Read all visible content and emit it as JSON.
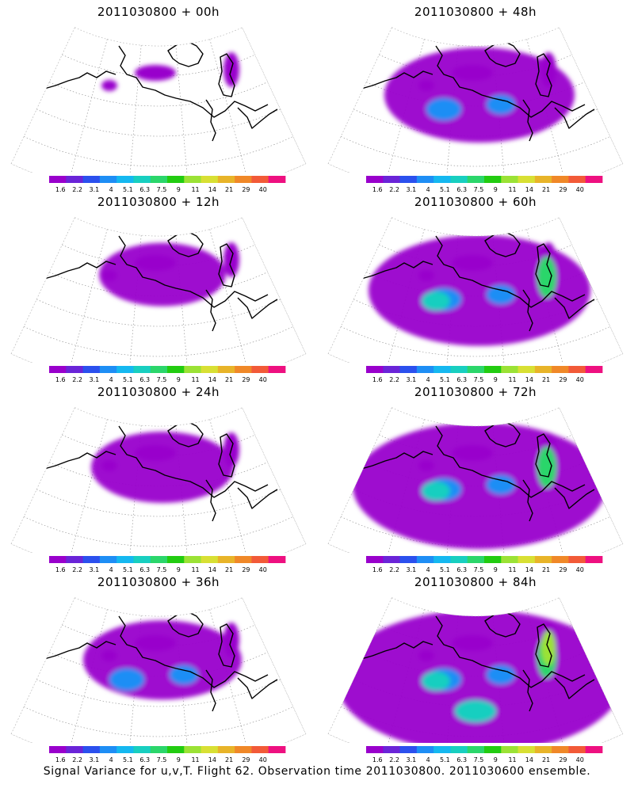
{
  "caption": "Signal Variance for u,v,T. Flight 62. Observation time 2011030800. 2011030600 ensemble.",
  "colorbar": {
    "labels": [
      "1.6",
      "2.2",
      "3.1",
      "4",
      "5.1",
      "6.3",
      "7.5",
      "9",
      "11",
      "14",
      "21",
      "29",
      "40"
    ],
    "colors": [
      "#9900cc",
      "#6a24d8",
      "#2b50ee",
      "#1e8ef5",
      "#15b8f0",
      "#18cfc0",
      "#2bd66b",
      "#22cc11",
      "#9be235",
      "#d8e034",
      "#e8b429",
      "#f08828",
      "#f25a38",
      "#ee1080"
    ]
  },
  "panels": [
    {
      "title": "2011030800 + 00h",
      "level": 0
    },
    {
      "title": "2011030800 + 48h",
      "level": 3
    },
    {
      "title": "2011030800 + 12h",
      "level": 1
    },
    {
      "title": "2011030800 + 60h",
      "level": 4
    },
    {
      "title": "2011030800 + 24h",
      "level": 1.5
    },
    {
      "title": "2011030800 + 72h",
      "level": 5
    },
    {
      "title": "2011030800 + 36h",
      "level": 2
    },
    {
      "title": "2011030800 + 84h",
      "level": 6
    }
  ]
}
